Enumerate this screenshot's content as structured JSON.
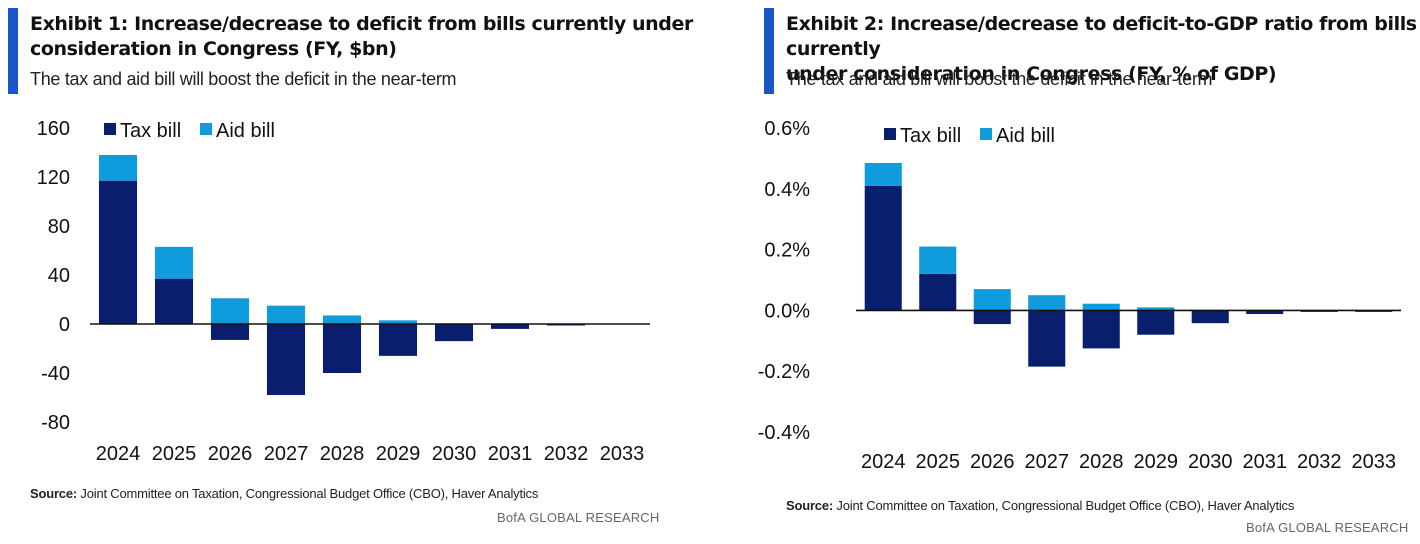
{
  "colors": {
    "tax": "#0a1e6e",
    "aid": "#0f9bdc",
    "accent": "#1a56c8",
    "axis": "#111111"
  },
  "legend": {
    "tax": "Tax bill",
    "aid": "Aid bill"
  },
  "exhibit1": {
    "title_line1": "Exhibit 1: Increase/decrease to deficit from bills currently under",
    "title_line2": "consideration in Congress (FY, $bn)",
    "subtitle": "The tax and aid bill will boost the deficit in the near-term",
    "source_label": "Source:",
    "source_text": " Joint Committee on Taxation, Congressional Budget Office (CBO), Haver Analytics",
    "brand": "BofA GLOBAL RESEARCH"
  },
  "exhibit2": {
    "title_line1": "Exhibit 2:  Increase/decrease to deficit-to-GDP ratio from bills currently",
    "title_line2": "under consideration in Congress (FY, % of GDP)",
    "subtitle": "The tax and aid bill will boost the deficit in the near-term",
    "source_label": "Source:",
    "source_text": " Joint Committee on Taxation, Congressional Budget Office (CBO), Haver Analytics",
    "brand": "BofA GLOBAL RESEARCH"
  },
  "chart_data": [
    {
      "type": "bar",
      "stacked": true,
      "categories": [
        "2024",
        "2025",
        "2026",
        "2027",
        "2028",
        "2029",
        "2030",
        "2031",
        "2032",
        "2033"
      ],
      "series": [
        {
          "name": "Tax bill",
          "values": [
            117,
            37,
            -13,
            -58,
            -40,
            -26,
            -14,
            -4,
            -1,
            0
          ]
        },
        {
          "name": "Aid bill",
          "values": [
            21,
            26,
            21,
            15,
            7,
            3,
            0,
            0,
            0,
            0
          ]
        }
      ],
      "ylim": [
        -80,
        160
      ],
      "yticks": [
        160,
        120,
        80,
        40,
        0,
        -40,
        -80
      ],
      "ytick_labels": [
        "160",
        "120",
        "80",
        "40",
        "0",
        "-40",
        "-80"
      ],
      "legend_position": "top-left"
    },
    {
      "type": "bar",
      "stacked": true,
      "categories": [
        "2024",
        "2025",
        "2026",
        "2027",
        "2028",
        "2029",
        "2030",
        "2031",
        "2032",
        "2033"
      ],
      "series": [
        {
          "name": "Tax bill",
          "values": [
            0.41,
            0.12,
            -0.045,
            -0.185,
            -0.125,
            -0.08,
            -0.042,
            -0.012,
            -0.003,
            -0.002
          ]
        },
        {
          "name": "Aid bill",
          "values": [
            0.075,
            0.09,
            0.07,
            0.05,
            0.022,
            0.01,
            0,
            0,
            0,
            0
          ]
        }
      ],
      "ylim": [
        -0.4,
        0.6
      ],
      "yticks": [
        0.6,
        0.4,
        0.2,
        0.0,
        -0.2,
        -0.4
      ],
      "ytick_labels": [
        "0.6%",
        "0.4%",
        "0.2%",
        "0.0%",
        "-0.2%",
        "-0.4%"
      ],
      "legend_position": "top-left"
    }
  ]
}
